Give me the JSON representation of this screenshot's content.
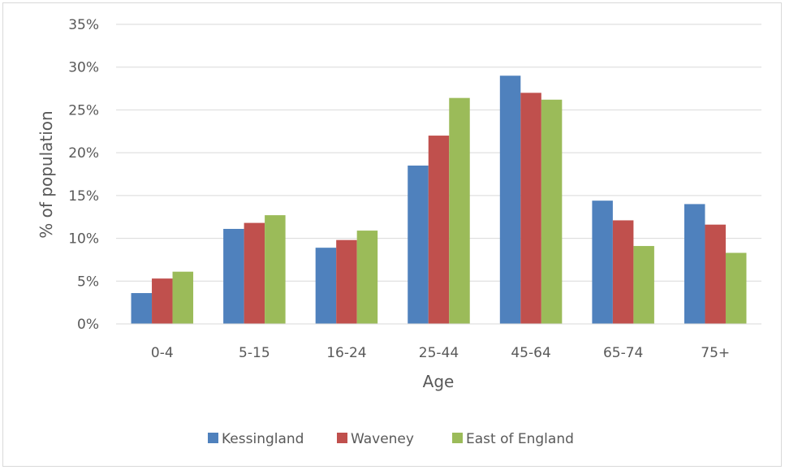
{
  "chart_data": {
    "type": "bar",
    "title": "",
    "xlabel": "Age",
    "ylabel": "% of population",
    "categories": [
      "0-4",
      "5-15",
      "16-24",
      "25-44",
      "45-64",
      "65-74",
      "75+"
    ],
    "series": [
      {
        "name": "Kessingland",
        "color": "#4f81bd",
        "values": [
          3.6,
          11.1,
          8.9,
          18.5,
          29.0,
          14.4,
          14.0
        ]
      },
      {
        "name": "Waveney",
        "color": "#c0504d",
        "values": [
          5.3,
          11.8,
          9.8,
          22.0,
          27.0,
          12.1,
          11.6
        ]
      },
      {
        "name": "East of England",
        "color": "#9bbb59",
        "values": [
          6.1,
          12.7,
          10.9,
          26.4,
          26.2,
          9.1,
          8.3
        ]
      }
    ],
    "ylim": [
      0,
      35
    ],
    "ytick_step": 5,
    "ytick_format": "percent",
    "grid": true,
    "legend_position": "bottom"
  }
}
